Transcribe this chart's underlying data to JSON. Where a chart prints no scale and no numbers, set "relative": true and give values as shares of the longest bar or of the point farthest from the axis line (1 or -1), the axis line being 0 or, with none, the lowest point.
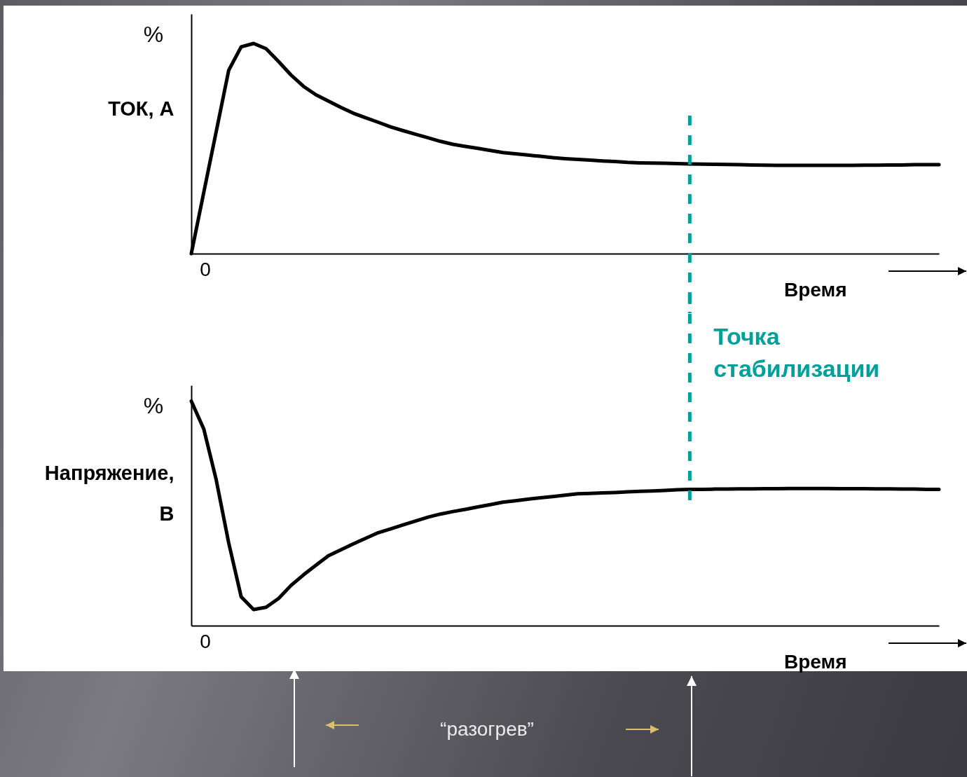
{
  "chart_data": [
    {
      "type": "line",
      "relative": true,
      "ylabel": "ТОК, А",
      "xlabel": "Время",
      "annotations": [
        "%",
        "0",
        "Точка стабилизации"
      ],
      "categories": [
        null,
        null,
        null,
        null,
        null,
        null,
        null,
        null,
        null,
        null,
        null,
        null,
        null,
        null,
        null,
        null,
        null,
        null,
        null,
        null,
        null,
        null,
        null,
        null,
        null,
        null,
        null,
        null,
        null,
        null,
        null,
        null,
        null,
        null,
        null,
        null,
        null,
        null,
        null,
        null,
        null,
        null,
        null,
        null,
        null,
        null,
        null,
        null,
        null,
        null,
        null,
        null,
        null,
        null,
        null,
        null,
        null,
        null,
        null,
        null,
        null
      ],
      "series": [
        {
          "color": "#000000",
          "values": [
            0,
            0.291,
            0.581,
            0.872,
            0.984,
            1.0,
            0.975,
            0.914,
            0.85,
            0.796,
            0.756,
            0.726,
            0.696,
            0.668,
            0.646,
            0.625,
            0.603,
            0.585,
            0.568,
            0.551,
            0.534,
            0.52,
            0.51,
            0.501,
            0.491,
            0.481,
            0.475,
            0.469,
            0.463,
            0.457,
            0.452,
            0.448,
            0.445,
            0.441,
            0.438,
            0.434,
            0.432,
            0.431,
            0.43,
            0.428,
            0.427,
            0.426,
            0.425,
            0.424,
            0.423,
            0.422,
            0.421,
            0.42,
            0.42,
            0.42,
            0.42,
            0.42,
            0.42,
            0.42,
            0.421,
            0.421,
            0.422,
            0.422,
            0.423,
            0.423,
            0.423
          ]
        }
      ]
    },
    {
      "type": "line",
      "relative": true,
      "ylabel": "Напряжение, В",
      "xlabel": "Время",
      "annotations": [
        "%",
        "0",
        "“разогрев”"
      ],
      "categories": [
        null,
        null,
        null,
        null,
        null,
        null,
        null,
        null,
        null,
        null,
        null,
        null,
        null,
        null,
        null,
        null,
        null,
        null,
        null,
        null,
        null,
        null,
        null,
        null,
        null,
        null,
        null,
        null,
        null,
        null,
        null,
        null,
        null,
        null,
        null,
        null,
        null,
        null,
        null,
        null,
        null,
        null,
        null,
        null,
        null,
        null,
        null,
        null,
        null,
        null,
        null,
        null,
        null,
        null,
        null,
        null,
        null,
        null,
        null,
        null,
        null
      ],
      "series": [
        {
          "color": "#000000",
          "values": [
            1.0,
            0.876,
            0.649,
            0.369,
            0.129,
            0.072,
            0.082,
            0.121,
            0.179,
            0.226,
            0.269,
            0.311,
            0.338,
            0.364,
            0.389,
            0.414,
            0.431,
            0.449,
            0.466,
            0.483,
            0.497,
            0.508,
            0.518,
            0.529,
            0.539,
            0.55,
            0.556,
            0.563,
            0.569,
            0.575,
            0.581,
            0.587,
            0.589,
            0.591,
            0.593,
            0.596,
            0.598,
            0.6,
            0.602,
            0.605,
            0.607,
            0.607,
            0.608,
            0.608,
            0.609,
            0.609,
            0.61,
            0.61,
            0.611,
            0.611,
            0.611,
            0.611,
            0.61,
            0.61,
            0.61,
            0.609,
            0.609,
            0.608,
            0.608,
            0.607,
            0.607
          ]
        }
      ]
    }
  ]
}
